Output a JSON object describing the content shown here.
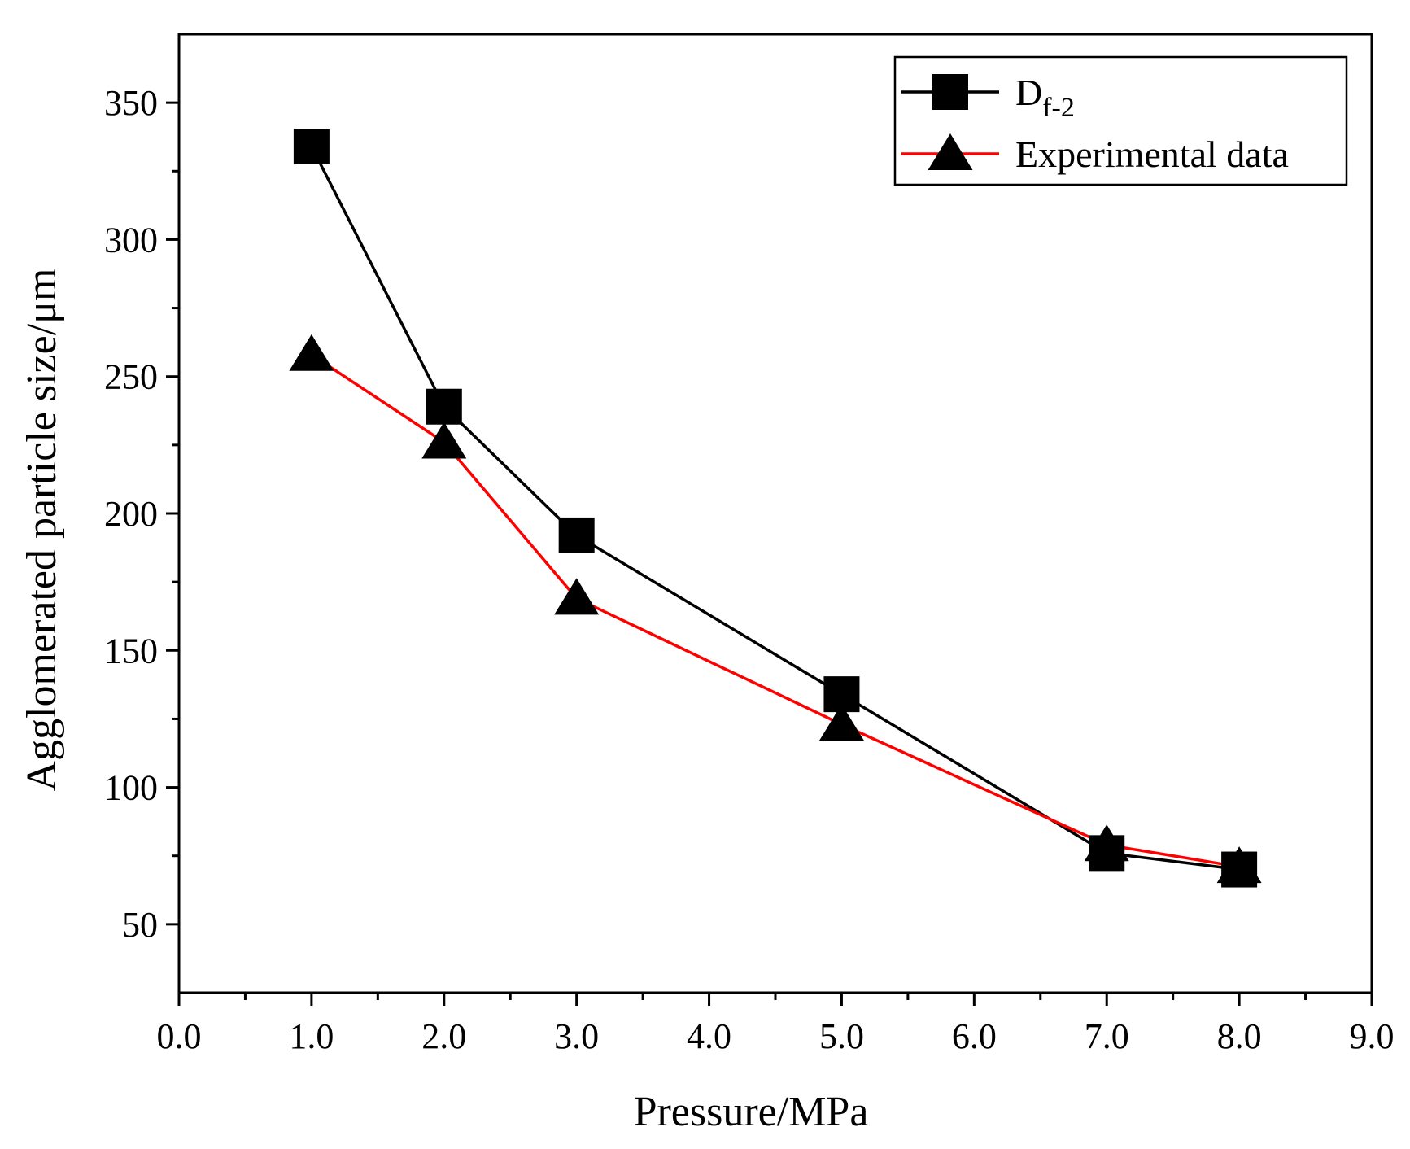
{
  "chart_data": {
    "type": "line",
    "title": "",
    "xlabel": "Pressure/MPa",
    "ylabel": "Agglomerated particle size/μm",
    "xlim": [
      0.0,
      9.0
    ],
    "ylim": [
      25,
      375
    ],
    "x_ticks": [
      0.0,
      1.0,
      2.0,
      3.0,
      4.0,
      5.0,
      6.0,
      7.0,
      8.0,
      9.0
    ],
    "x_tick_labels": [
      "0.0",
      "1.0",
      "2.0",
      "3.0",
      "4.0",
      "5.0",
      "6.0",
      "7.0",
      "8.0",
      "9.0"
    ],
    "y_ticks": [
      50,
      100,
      150,
      200,
      250,
      300,
      350
    ],
    "y_tick_labels": [
      "50",
      "100",
      "150",
      "200",
      "250",
      "300",
      "350"
    ],
    "grid": false,
    "legend_position": "top-right",
    "series": [
      {
        "name": "D",
        "name_subscript": "f-2",
        "marker": "square",
        "color": "#000000",
        "x": [
          1.0,
          2.0,
          3.0,
          5.0,
          7.0,
          8.0
        ],
        "y": [
          334,
          239,
          192,
          134,
          76,
          70
        ]
      },
      {
        "name": "Experimental data",
        "marker": "triangle",
        "color": "#ff0000",
        "marker_color": "#000000",
        "x": [
          1.0,
          2.0,
          3.0,
          5.0,
          7.0,
          8.0
        ],
        "y": [
          258,
          226,
          169,
          123,
          79,
          71
        ]
      }
    ]
  }
}
